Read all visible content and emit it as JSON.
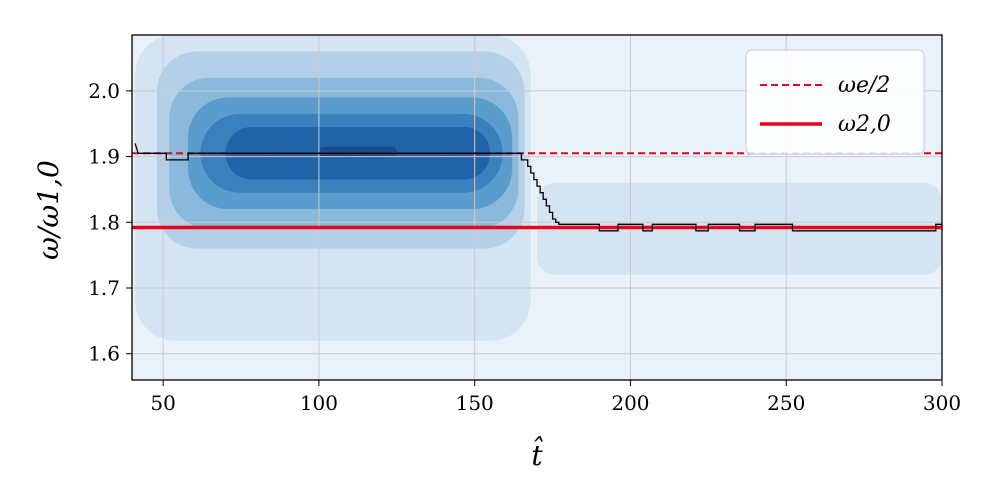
{
  "chart_data": {
    "type": "line",
    "xlabel": "t̂",
    "ylabel": "ω/ω1,0",
    "xlim": [
      40,
      300
    ],
    "ylim": [
      1.56,
      2.085
    ],
    "x_ticks": [
      50,
      100,
      150,
      200,
      250,
      300
    ],
    "y_ticks": [
      1.6,
      1.7,
      1.8,
      1.9,
      2.0
    ],
    "x_tick_labels": [
      "50",
      "100",
      "150",
      "200",
      "250",
      "300"
    ],
    "y_tick_labels": [
      "1.6",
      "1.7",
      "1.8",
      "1.9",
      "2.0"
    ],
    "grid": true,
    "legend_position": "top-right",
    "series": [
      {
        "name": "ωe/2",
        "kind": "hline",
        "y": 1.905,
        "color": "#e8001c",
        "style": "dashed"
      },
      {
        "name": "ω2,0",
        "kind": "hline",
        "y": 1.792,
        "color": "#e8001c",
        "style": "solid"
      },
      {
        "kind": "step",
        "color": "#000000",
        "x": [
          41,
          42,
          42,
          51,
          51,
          58,
          58,
          165,
          165,
          167,
          167,
          168,
          168,
          169,
          169,
          170,
          170,
          171,
          171,
          172,
          172,
          173,
          173,
          174,
          174,
          175,
          175,
          176,
          176,
          177,
          177,
          178,
          178,
          180,
          180,
          190,
          190,
          196,
          196,
          204,
          204,
          207,
          207,
          221,
          221,
          225,
          225,
          235,
          235,
          240,
          240,
          252,
          252,
          268,
          268,
          298,
          298,
          300
        ],
        "y": [
          1.92,
          1.905,
          1.905,
          1.905,
          1.895,
          1.895,
          1.905,
          1.905,
          1.895,
          1.895,
          1.885,
          1.885,
          1.875,
          1.875,
          1.865,
          1.865,
          1.855,
          1.855,
          1.845,
          1.845,
          1.835,
          1.835,
          1.825,
          1.825,
          1.815,
          1.815,
          1.805,
          1.805,
          1.8,
          1.8,
          1.797,
          1.797,
          1.797,
          1.797,
          1.797,
          1.797,
          1.787,
          1.787,
          1.797,
          1.797,
          1.787,
          1.787,
          1.797,
          1.797,
          1.787,
          1.787,
          1.797,
          1.797,
          1.787,
          1.787,
          1.797,
          1.797,
          1.787,
          1.787,
          1.787,
          1.787,
          1.797,
          1.797
        ]
      }
    ],
    "density": {
      "colors": [
        "#d4e4f2",
        "#b4d0e8",
        "#8ab9dc",
        "#5a9ccc",
        "#3a80bd",
        "#1f63a8",
        "#134f8c"
      ],
      "background": "#e9f1fa",
      "levels": [
        {
          "t0": 41,
          "t1": 168,
          "ymin": 1.62,
          "ymax": 2.085
        },
        {
          "t0": 48,
          "t1": 166,
          "ymin": 1.76,
          "ymax": 2.06
        },
        {
          "t0": 52,
          "t1": 164,
          "ymin": 1.79,
          "ymax": 2.02
        },
        {
          "t0": 58,
          "t1": 162,
          "ymin": 1.82,
          "ymax": 1.99
        },
        {
          "t0": 62,
          "t1": 159,
          "ymin": 1.845,
          "ymax": 1.965
        },
        {
          "t0": 70,
          "t1": 155,
          "ymin": 1.865,
          "ymax": 1.945
        },
        {
          "t0": 100,
          "t1": 125,
          "ymin": 1.9,
          "ymax": 1.915
        }
      ],
      "tail_band": {
        "t0": 170,
        "t1": 300,
        "ymin": 1.72,
        "ymax": 1.86
      }
    }
  }
}
